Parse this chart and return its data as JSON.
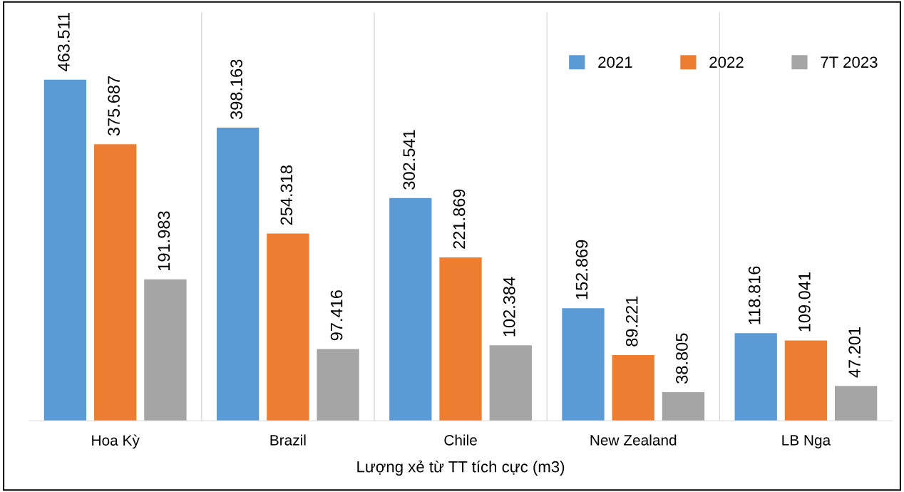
{
  "chart_data": {
    "type": "bar",
    "xlabel": "Lượng xẻ từ TT tích cực (m3)",
    "categories": [
      "Hoa Kỳ",
      "Brazil",
      "Chile",
      "New Zealand",
      "LB Nga"
    ],
    "series": [
      {
        "name": "2021",
        "color": "#5b9bd5",
        "values": [
          463.511,
          398.163,
          302.541,
          152.869,
          118.816
        ]
      },
      {
        "name": "2022",
        "color": "#ed7d31",
        "values": [
          375.687,
          254.318,
          221.869,
          89.221,
          109.041
        ]
      },
      {
        "name": "7T 2023",
        "color": "#a5a5a5",
        "values": [
          191.983,
          97.416,
          102.384,
          38.805,
          47.201
        ]
      }
    ],
    "ylim": [
      0,
      555
    ],
    "data_labels": true,
    "grid": "x",
    "legend": "top right",
    "tick_labels": "x"
  }
}
